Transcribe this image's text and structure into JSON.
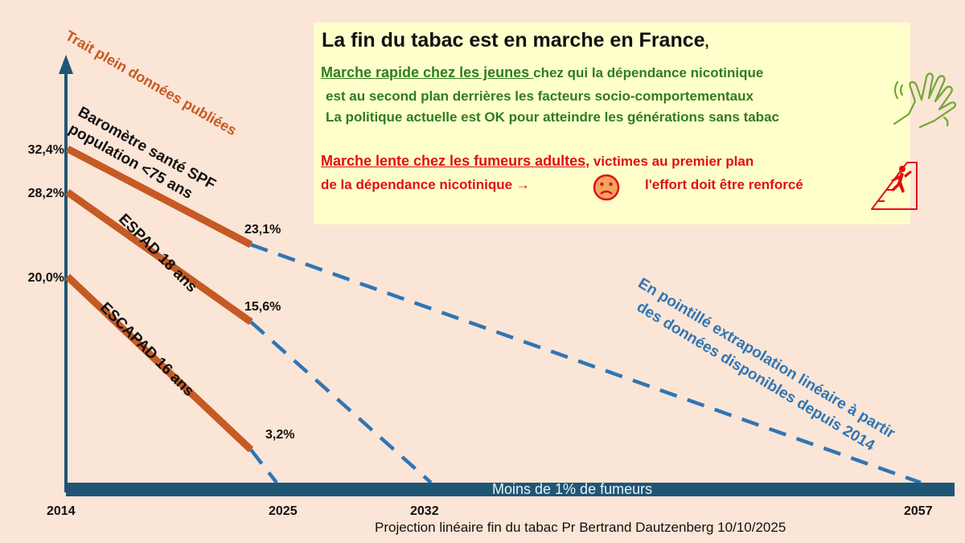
{
  "chart_data": {
    "type": "line",
    "title": "La fin du tabac est en marche en France",
    "x_ticks": [
      "2014",
      "2025",
      "2032",
      "2057"
    ],
    "xlim": [
      2014,
      2057
    ],
    "ylim": [
      0,
      34
    ],
    "floor_label": "Moins de 1% de fumeurs",
    "solid_legend": "Trait plein données publiées",
    "dashed_legend": "En pointillé extrapolation linéaire à partir des données disponibles depuis 2014",
    "series": [
      {
        "name": "Baromètre santé SPF population <75 ans",
        "name_lines": [
          "Baromètre santé SPF",
          "population <75 ans"
        ],
        "observed": {
          "x": [
            2014,
            2025
          ],
          "y": [
            32.4,
            23.1
          ]
        },
        "extrapolated": {
          "x": [
            2025,
            2057
          ],
          "y": [
            23.1,
            0
          ]
        },
        "start_label": "32,4%",
        "end_label": "23,1%"
      },
      {
        "name": "ESPAD 18 ans",
        "observed": {
          "x": [
            2014,
            2025
          ],
          "y": [
            28.2,
            15.6
          ]
        },
        "extrapolated": {
          "x": [
            2025,
            2032
          ],
          "y": [
            15.6,
            0
          ]
        },
        "start_label": "28,2%",
        "end_label": "15,6%"
      },
      {
        "name": "ESCAPAD 16 ans",
        "observed": {
          "x": [
            2014,
            2025
          ],
          "y": [
            20.0,
            3.2
          ]
        },
        "extrapolated": {
          "x": [
            2025,
            2026
          ],
          "y": [
            3.2,
            0
          ]
        },
        "start_label": "20,0%",
        "end_label": "3,2%"
      }
    ],
    "colors": {
      "observed": "#c55a24",
      "extrapolated": "#2e75b6",
      "axis": "#1f5675",
      "legend_text": "#c55a24"
    }
  },
  "info": {
    "title": "La fin du tabac est en marche en France",
    "title_punct": ",",
    "youth_heading": "Marche rapide chez les jeunes ",
    "youth_line1_rest": "chez qui  la dépendance nicotinique",
    "youth_line2": "est au second plan derrières les facteurs socio-comportementaux",
    "youth_line3": "La politique actuelle est OK pour atteindre les générations sans tabac",
    "adult_heading": "Marche lente chez les fumeurs adultes,",
    "adult_line1_rest": "victimes au premier plan",
    "adult_line2_a": "de la dépendance nicotinique →",
    "adult_line2_b": "l'effort doit être renforcé",
    "green": "#2e7d1f",
    "red": "#e01010"
  },
  "footer": "Projection linéaire fin du tabac Pr Bertrand Dautzenberg 10/10/2025"
}
